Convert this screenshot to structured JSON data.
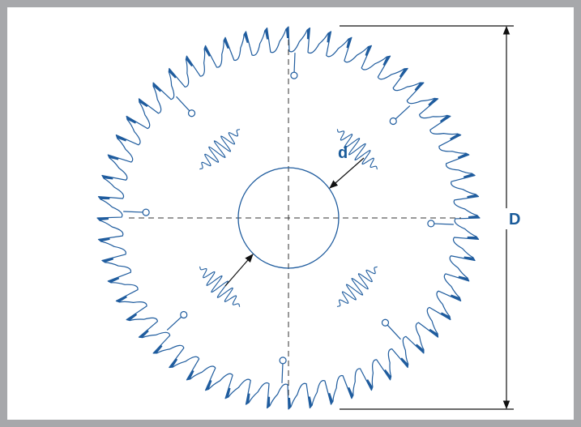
{
  "labels": {
    "bore_diameter": "d",
    "outer_diameter": "D"
  },
  "colors": {
    "line": "#1f5c9e",
    "label": "#1a5b9a",
    "frame_border": "#a7a8ab",
    "centerline": "#333333",
    "background": "#ffffff"
  },
  "blade": {
    "teeth": 56,
    "expansion_slots": 8,
    "noise_slots": 4
  }
}
